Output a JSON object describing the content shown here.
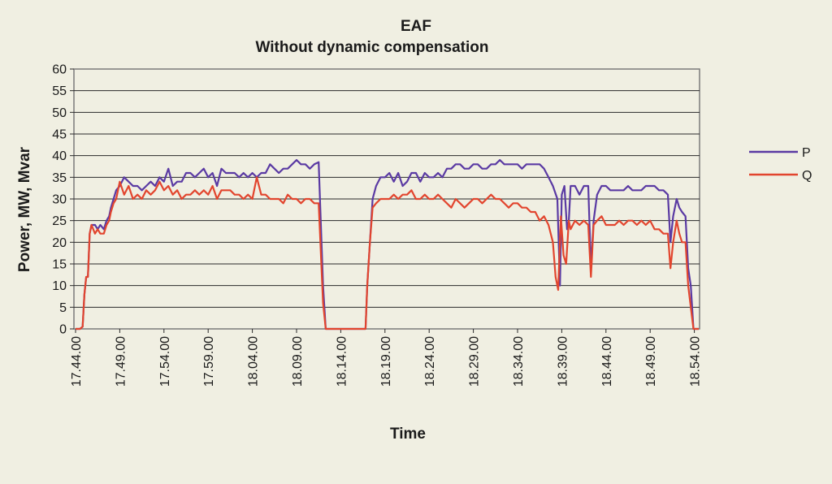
{
  "chart_data": {
    "type": "line",
    "title": "EAF",
    "subtitle": "Without dynamic compensation",
    "xlabel": "Time",
    "ylabel": "Power, MW, Mvar",
    "ylim": [
      0,
      60
    ],
    "yticks": [
      0,
      5,
      10,
      15,
      20,
      25,
      30,
      35,
      40,
      45,
      50,
      55,
      60
    ],
    "xticks": [
      "17.44.00",
      "17.49.00",
      "17.54.00",
      "17.59.00",
      "18.04.00",
      "18.09.00",
      "18.14.00",
      "18.19.00",
      "18.24.00",
      "18.29.00",
      "18.34.00",
      "18.39.00",
      "18.44.00",
      "18.49.00",
      "18.54.00"
    ],
    "x_unit": "minutes after 17.44.00",
    "grid": true,
    "legend": "right",
    "series": [
      {
        "name": "P",
        "color": "#5a3aa3",
        "points": [
          [
            0,
            0
          ],
          [
            0.5,
            0
          ],
          [
            0.8,
            0.5
          ],
          [
            1.0,
            8
          ],
          [
            1.2,
            12
          ],
          [
            1.4,
            12
          ],
          [
            1.6,
            22
          ],
          [
            1.8,
            24
          ],
          [
            2.2,
            24
          ],
          [
            2.5,
            23
          ],
          [
            2.8,
            24
          ],
          [
            3.2,
            23
          ],
          [
            3.5,
            25
          ],
          [
            3.8,
            26
          ],
          [
            4.0,
            28
          ],
          [
            4.3,
            30
          ],
          [
            4.6,
            32
          ],
          [
            5.0,
            33
          ],
          [
            5.5,
            35
          ],
          [
            6.0,
            34
          ],
          [
            6.5,
            33
          ],
          [
            7.0,
            33
          ],
          [
            7.5,
            32
          ],
          [
            8.0,
            33
          ],
          [
            8.5,
            34
          ],
          [
            9.0,
            33
          ],
          [
            9.5,
            35
          ],
          [
            10.0,
            34
          ],
          [
            10.5,
            37
          ],
          [
            11.0,
            33
          ],
          [
            11.5,
            34
          ],
          [
            12.0,
            34
          ],
          [
            12.5,
            36
          ],
          [
            13.0,
            36
          ],
          [
            13.5,
            35
          ],
          [
            14.0,
            36
          ],
          [
            14.5,
            37
          ],
          [
            15.0,
            35
          ],
          [
            15.5,
            36
          ],
          [
            16.0,
            33
          ],
          [
            16.5,
            37
          ],
          [
            17.0,
            36
          ],
          [
            17.5,
            36
          ],
          [
            18.0,
            36
          ],
          [
            18.5,
            35
          ],
          [
            19.0,
            36
          ],
          [
            19.5,
            35
          ],
          [
            20.0,
            36
          ],
          [
            20.5,
            35
          ],
          [
            21.0,
            36
          ],
          [
            21.5,
            36
          ],
          [
            22.0,
            38
          ],
          [
            22.5,
            37
          ],
          [
            23.0,
            36
          ],
          [
            23.5,
            37
          ],
          [
            24.0,
            37
          ],
          [
            24.5,
            38
          ],
          [
            25.0,
            39
          ],
          [
            25.5,
            38
          ],
          [
            26.0,
            38
          ],
          [
            26.5,
            37
          ],
          [
            27.0,
            38
          ],
          [
            27.5,
            38.5
          ],
          [
            28.0,
            10
          ],
          [
            28.3,
            0
          ],
          [
            28.6,
            0
          ],
          [
            32.8,
            0
          ],
          [
            33.0,
            10
          ],
          [
            33.3,
            20
          ],
          [
            33.6,
            30
          ],
          [
            34.0,
            33
          ],
          [
            34.5,
            35
          ],
          [
            35.0,
            35
          ],
          [
            35.5,
            36
          ],
          [
            36.0,
            34
          ],
          [
            36.5,
            36
          ],
          [
            37.0,
            33
          ],
          [
            37.5,
            34
          ],
          [
            38.0,
            36
          ],
          [
            38.5,
            36
          ],
          [
            39.0,
            34
          ],
          [
            39.5,
            36
          ],
          [
            40.0,
            35
          ],
          [
            40.5,
            35
          ],
          [
            41.0,
            36
          ],
          [
            41.5,
            35
          ],
          [
            42.0,
            37
          ],
          [
            42.5,
            37
          ],
          [
            43.0,
            38
          ],
          [
            43.5,
            38
          ],
          [
            44.0,
            37
          ],
          [
            44.5,
            37
          ],
          [
            45.0,
            38
          ],
          [
            45.5,
            38
          ],
          [
            46.0,
            37
          ],
          [
            46.5,
            37
          ],
          [
            47.0,
            38
          ],
          [
            47.5,
            38
          ],
          [
            48.0,
            39
          ],
          [
            48.5,
            38
          ],
          [
            49.0,
            38
          ],
          [
            49.5,
            38
          ],
          [
            50.0,
            38
          ],
          [
            50.5,
            37
          ],
          [
            51.0,
            38
          ],
          [
            51.5,
            38
          ],
          [
            52.0,
            38
          ],
          [
            52.5,
            38
          ],
          [
            53.0,
            37
          ],
          [
            53.5,
            35
          ],
          [
            54.0,
            33
          ],
          [
            54.5,
            30
          ],
          [
            54.8,
            10
          ],
          [
            55.0,
            31
          ],
          [
            55.3,
            33
          ],
          [
            55.6,
            23
          ],
          [
            55.8,
            25
          ],
          [
            56.0,
            33
          ],
          [
            56.5,
            33
          ],
          [
            57.0,
            31
          ],
          [
            57.5,
            33
          ],
          [
            58.0,
            33
          ],
          [
            58.3,
            14
          ],
          [
            58.6,
            25
          ],
          [
            59.0,
            31
          ],
          [
            59.5,
            33
          ],
          [
            60.0,
            33
          ],
          [
            60.5,
            32
          ],
          [
            61.0,
            32
          ],
          [
            61.5,
            32
          ],
          [
            62.0,
            32
          ],
          [
            62.5,
            33
          ],
          [
            63.0,
            32
          ],
          [
            63.5,
            32
          ],
          [
            64.0,
            32
          ],
          [
            64.5,
            33
          ],
          [
            65.0,
            33
          ],
          [
            65.5,
            33
          ],
          [
            66.0,
            32
          ],
          [
            66.5,
            32
          ],
          [
            67.0,
            31
          ],
          [
            67.3,
            20
          ],
          [
            67.6,
            26
          ],
          [
            68.0,
            30
          ],
          [
            68.3,
            28
          ],
          [
            68.6,
            27
          ],
          [
            69.0,
            26
          ],
          [
            69.3,
            14
          ],
          [
            69.6,
            10
          ],
          [
            69.9,
            0
          ],
          [
            70.5,
            0
          ]
        ]
      },
      {
        "name": "Q",
        "color": "#e2452e",
        "points": [
          [
            0,
            0
          ],
          [
            0.5,
            0
          ],
          [
            0.8,
            0.5
          ],
          [
            1.0,
            8
          ],
          [
            1.2,
            12
          ],
          [
            1.4,
            12
          ],
          [
            1.6,
            22
          ],
          [
            1.8,
            24
          ],
          [
            2.2,
            22
          ],
          [
            2.5,
            23
          ],
          [
            2.8,
            22
          ],
          [
            3.2,
            22
          ],
          [
            3.5,
            24
          ],
          [
            3.8,
            25
          ],
          [
            4.0,
            27
          ],
          [
            4.3,
            29
          ],
          [
            4.6,
            30
          ],
          [
            5.0,
            34
          ],
          [
            5.5,
            31
          ],
          [
            6.0,
            33
          ],
          [
            6.5,
            30
          ],
          [
            7.0,
            31
          ],
          [
            7.5,
            30
          ],
          [
            8.0,
            32
          ],
          [
            8.5,
            31
          ],
          [
            9.0,
            32
          ],
          [
            9.5,
            34
          ],
          [
            10.0,
            32
          ],
          [
            10.5,
            33
          ],
          [
            11.0,
            31
          ],
          [
            11.5,
            32
          ],
          [
            12.0,
            30
          ],
          [
            12.5,
            31
          ],
          [
            13.0,
            31
          ],
          [
            13.5,
            32
          ],
          [
            14.0,
            31
          ],
          [
            14.5,
            32
          ],
          [
            15.0,
            31
          ],
          [
            15.5,
            33
          ],
          [
            16.0,
            30
          ],
          [
            16.5,
            32
          ],
          [
            17.0,
            32
          ],
          [
            17.5,
            32
          ],
          [
            18.0,
            31
          ],
          [
            18.5,
            31
          ],
          [
            19.0,
            30
          ],
          [
            19.5,
            31
          ],
          [
            20.0,
            30
          ],
          [
            20.5,
            35
          ],
          [
            21.0,
            31
          ],
          [
            21.5,
            31
          ],
          [
            22.0,
            30
          ],
          [
            22.5,
            30
          ],
          [
            23.0,
            30
          ],
          [
            23.5,
            29
          ],
          [
            24.0,
            31
          ],
          [
            24.5,
            30
          ],
          [
            25.0,
            30
          ],
          [
            25.5,
            29
          ],
          [
            26.0,
            30
          ],
          [
            26.5,
            30
          ],
          [
            27.0,
            29
          ],
          [
            27.5,
            29
          ],
          [
            28.0,
            6
          ],
          [
            28.3,
            0
          ],
          [
            28.6,
            0
          ],
          [
            32.8,
            0
          ],
          [
            33.0,
            10
          ],
          [
            33.3,
            20
          ],
          [
            33.6,
            28
          ],
          [
            34.0,
            29
          ],
          [
            34.5,
            30
          ],
          [
            35.0,
            30
          ],
          [
            35.5,
            30
          ],
          [
            36.0,
            31
          ],
          [
            36.5,
            30
          ],
          [
            37.0,
            31
          ],
          [
            37.5,
            31
          ],
          [
            38.0,
            32
          ],
          [
            38.5,
            30
          ],
          [
            39.0,
            30
          ],
          [
            39.5,
            31
          ],
          [
            40.0,
            30
          ],
          [
            40.5,
            30
          ],
          [
            41.0,
            31
          ],
          [
            41.5,
            30
          ],
          [
            42.0,
            29
          ],
          [
            42.5,
            28
          ],
          [
            43.0,
            30
          ],
          [
            43.5,
            29
          ],
          [
            44.0,
            28
          ],
          [
            44.5,
            29
          ],
          [
            45.0,
            30
          ],
          [
            45.5,
            30
          ],
          [
            46.0,
            29
          ],
          [
            46.5,
            30
          ],
          [
            47.0,
            31
          ],
          [
            47.5,
            30
          ],
          [
            48.0,
            30
          ],
          [
            48.5,
            29
          ],
          [
            49.0,
            28
          ],
          [
            49.5,
            29
          ],
          [
            50.0,
            29
          ],
          [
            50.5,
            28
          ],
          [
            51.0,
            28
          ],
          [
            51.5,
            27
          ],
          [
            52.0,
            27
          ],
          [
            52.5,
            25
          ],
          [
            53.0,
            26
          ],
          [
            53.5,
            24
          ],
          [
            54.0,
            20
          ],
          [
            54.3,
            12
          ],
          [
            54.6,
            9
          ],
          [
            54.9,
            26
          ],
          [
            55.2,
            17
          ],
          [
            55.5,
            15
          ],
          [
            55.8,
            25
          ],
          [
            56.0,
            23
          ],
          [
            56.5,
            25
          ],
          [
            57.0,
            24
          ],
          [
            57.5,
            25
          ],
          [
            58.0,
            24
          ],
          [
            58.3,
            12
          ],
          [
            58.6,
            24
          ],
          [
            59.0,
            25
          ],
          [
            59.5,
            26
          ],
          [
            60.0,
            24
          ],
          [
            60.5,
            24
          ],
          [
            61.0,
            24
          ],
          [
            61.5,
            25
          ],
          [
            62.0,
            24
          ],
          [
            62.5,
            25
          ],
          [
            63.0,
            25
          ],
          [
            63.5,
            24
          ],
          [
            64.0,
            25
          ],
          [
            64.5,
            24
          ],
          [
            65.0,
            25
          ],
          [
            65.5,
            23
          ],
          [
            66.0,
            23
          ],
          [
            66.5,
            22
          ],
          [
            67.0,
            22
          ],
          [
            67.3,
            14
          ],
          [
            67.6,
            20
          ],
          [
            68.0,
            25
          ],
          [
            68.3,
            22
          ],
          [
            68.6,
            20
          ],
          [
            69.0,
            20
          ],
          [
            69.3,
            10
          ],
          [
            69.6,
            5
          ],
          [
            69.9,
            0
          ],
          [
            70.5,
            0
          ]
        ]
      }
    ]
  }
}
